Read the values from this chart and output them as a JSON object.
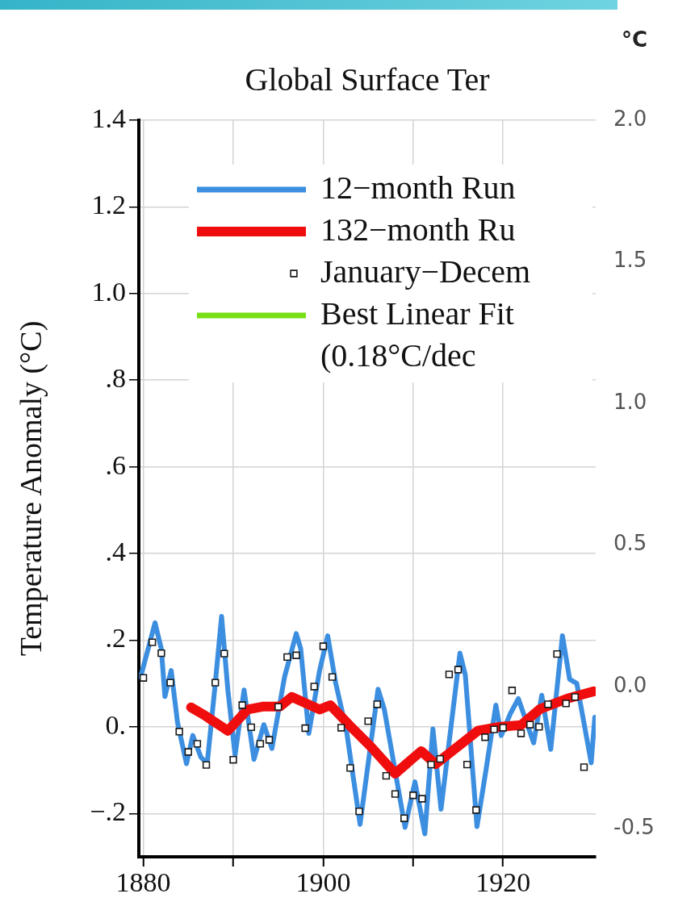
{
  "chart_data": {
    "type": "line",
    "title": "Global Surface Ter",
    "ylabel": "Temperature Anomaly (°C)",
    "y2label": "°C",
    "xlim": [
      1879.5,
      1930.3
    ],
    "xticks": [
      1880,
      {
        "value": 1890,
        "label": null
      },
      1900,
      {
        "value": 1910,
        "label": null
      },
      1920
    ],
    "ylim": [
      -0.3,
      1.4
    ],
    "yticks": [
      {
        "value": -0.2,
        "label": "−.2"
      },
      {
        "value": 0,
        "label": "0."
      },
      {
        "value": 0.2,
        "label": ".2"
      },
      {
        "value": 0.4,
        "label": ".4"
      },
      {
        "value": 0.6,
        "label": ".6"
      },
      {
        "value": 0.8,
        "label": ".8"
      },
      {
        "value": 1.0,
        "label": "1.0"
      },
      {
        "value": 1.2,
        "label": "1.2"
      },
      {
        "value": 1.4,
        "label": "1.4"
      }
    ],
    "y2lim": [
      -0.6,
      2.0
    ],
    "y2ticks": [
      {
        "value": -0.5,
        "label": "-0.5"
      },
      {
        "value": 0,
        "label": "0.0"
      },
      {
        "value": 0.5,
        "label": "0.5"
      },
      {
        "value": 1.0,
        "label": "1.0"
      },
      {
        "value": 1.5,
        "label": "1.5"
      },
      {
        "value": 2.0,
        "label": "2.0"
      }
    ],
    "grid": true,
    "legend": "top right",
    "line_style": "solid",
    "series": [
      {
        "name": "12−month Run",
        "color": "#3c8ee0",
        "x": [
          1879.7,
          1881.3,
          1882,
          1882.4,
          1883.1,
          1883.8,
          1884.8,
          1885.5,
          1886.4,
          1887.1,
          1888,
          1888.7,
          1889.4,
          1890.2,
          1891.2,
          1892.3,
          1893.4,
          1894.3,
          1895.7,
          1897,
          1897.5,
          1898.4,
          1899.6,
          1900.5,
          1901.4,
          1902.6,
          1904.1,
          1906.1,
          1906.8,
          1909.1,
          1910.2,
          1911.3,
          1912.2,
          1913.1,
          1915.2,
          1915.8,
          1917.1,
          1918.1,
          1919.2,
          1919.8,
          1920.8,
          1921.7,
          1923.4,
          1924.3,
          1925.3,
          1926.6,
          1927.4,
          1928.2,
          1929.8,
          1930.2
        ],
        "values": [
          0.115,
          0.24,
          0.18,
          0.07,
          0.13,
          0.01,
          -0.085,
          -0.02,
          -0.07,
          -0.085,
          0.1,
          0.255,
          0.085,
          -0.065,
          0.085,
          -0.075,
          0.005,
          -0.05,
          0.115,
          0.215,
          0.18,
          -0.015,
          0.13,
          0.21,
          0.1,
          -0.01,
          -0.225,
          0.087,
          0.04,
          -0.232,
          -0.127,
          -0.247,
          -0.005,
          -0.19,
          0.17,
          0.12,
          -0.23,
          -0.1,
          0.05,
          -0.02,
          0.03,
          0.065,
          -0.037,
          0.073,
          -0.052,
          0.21,
          0.11,
          0.1,
          -0.083,
          0.022
        ]
      },
      {
        "name": "132−month Ru",
        "color": "#f00d0d",
        "x": [
          1885.3,
          1886.7,
          1889.4,
          1891.6,
          1893.4,
          1895.2,
          1896.5,
          1899.6,
          1900.8,
          1902.9,
          1905.3,
          1908,
          1910.9,
          1912.5,
          1917.2,
          1919.6,
          1922,
          1924.1,
          1927.1,
          1930.1
        ],
        "values": [
          0.045,
          0.028,
          -0.009,
          0.04,
          0.047,
          0.047,
          0.069,
          0.04,
          0.05,
          0.004,
          -0.046,
          -0.108,
          -0.056,
          -0.086,
          -0.009,
          0,
          0.004,
          0.041,
          0.065,
          0.082
        ]
      },
      {
        "name": "January−Decem",
        "type": "scatter",
        "marker": "square",
        "color": "#1a1a1a",
        "x": [
          1880,
          1881,
          1882,
          1883,
          1884,
          1885,
          1886,
          1887,
          1888,
          1889,
          1890,
          1891,
          1892,
          1893,
          1894,
          1895,
          1896,
          1897,
          1898,
          1899,
          1900,
          1901,
          1902,
          1903,
          1904,
          1905,
          1906,
          1907,
          1908,
          1909,
          1910,
          1911,
          1912,
          1913,
          1914,
          1915,
          1916,
          1917,
          1918,
          1919,
          1920,
          1921,
          1922,
          1923,
          1924,
          1925,
          1926,
          1927,
          1928,
          1929
        ],
        "values": [
          0.113,
          0.195,
          0.17,
          0.102,
          -0.011,
          -0.058,
          -0.039,
          -0.088,
          0.102,
          0.169,
          -0.076,
          0.05,
          -0.001,
          -0.039,
          -0.03,
          0.046,
          0.161,
          0.165,
          -0.003,
          0.093,
          0.186,
          0.115,
          -0.002,
          -0.095,
          -0.195,
          0.013,
          0.052,
          -0.113,
          -0.155,
          -0.211,
          -0.158,
          -0.166,
          -0.087,
          -0.074,
          0.121,
          0.132,
          -0.087,
          -0.192,
          -0.024,
          -0.006,
          -0.002,
          0.084,
          -0.015,
          0.005,
          0,
          0.052,
          0.168,
          0.054,
          0.069,
          -0.093
        ]
      },
      {
        "name": "Best Linear Fit (0.18°C/dec",
        "color": "#76e014"
      }
    ]
  }
}
